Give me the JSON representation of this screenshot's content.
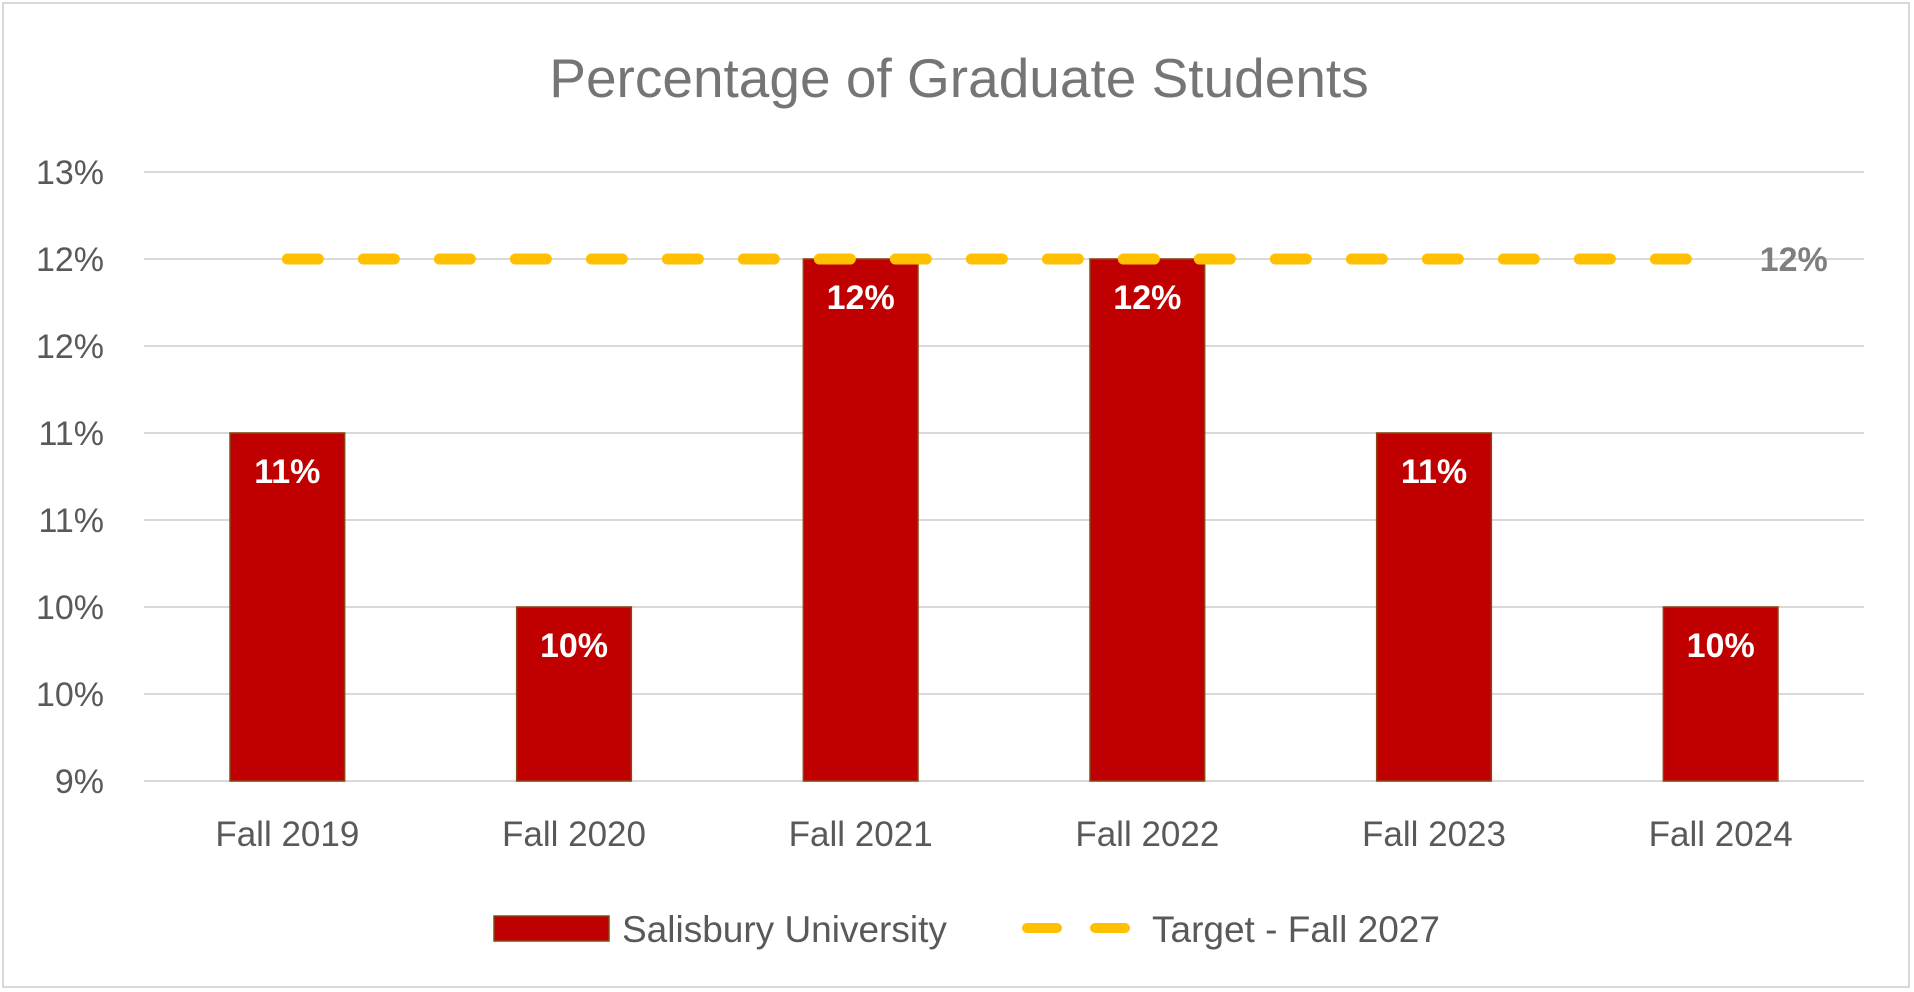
{
  "chart_data": {
    "type": "bar",
    "title": "Percentage of Graduate Students",
    "categories": [
      "Fall 2019",
      "Fall 2020",
      "Fall 2021",
      "Fall 2022",
      "Fall 2023",
      "Fall 2024"
    ],
    "series": [
      {
        "name": "Salisbury University",
        "type": "bar",
        "values": [
          11.0,
          10.0,
          12.0,
          12.0,
          11.0,
          10.0
        ],
        "data_labels": [
          "11%",
          "10%",
          "12%",
          "12%",
          "11%",
          "10%"
        ],
        "color": "#c00000"
      },
      {
        "name": "Target - Fall 2027",
        "type": "line",
        "style": "dashed",
        "value": 12.0,
        "data_label": "12%",
        "color": "#ffc000"
      }
    ],
    "y_ticks": [
      {
        "value": 9.0,
        "label": "9%"
      },
      {
        "value": 9.5,
        "label": "10%"
      },
      {
        "value": 10.0,
        "label": "10%"
      },
      {
        "value": 10.5,
        "label": "11%"
      },
      {
        "value": 11.0,
        "label": "11%"
      },
      {
        "value": 11.5,
        "label": "12%"
      },
      {
        "value": 12.0,
        "label": "12%"
      },
      {
        "value": 12.5,
        "label": "13%"
      }
    ],
    "ylim": [
      9.0,
      12.5
    ],
    "grid": true,
    "legend_position": "bottom"
  }
}
